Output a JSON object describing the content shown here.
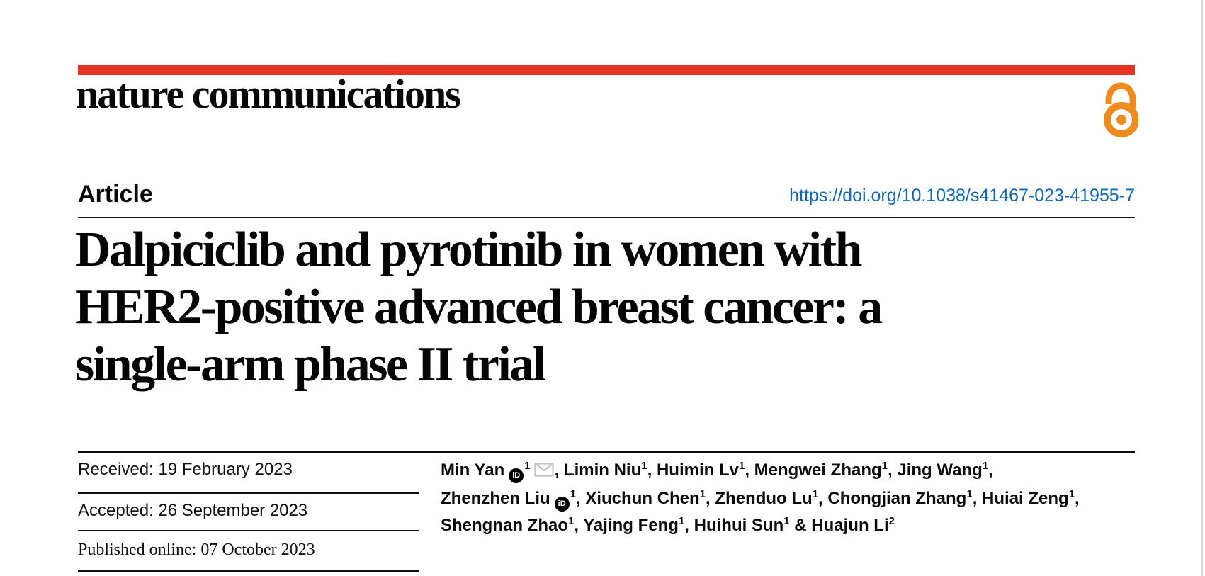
{
  "colors": {
    "brand_red": "#e63323",
    "open_access_orange": "#ef8b1e",
    "link_blue": "#1368b2",
    "divider_black": "#0c0c0c",
    "envelope_gray": "#c4c4c4",
    "page_edge_gray": "#d9d9d9"
  },
  "icons": {
    "open_access": "open-access-padlock-icon",
    "orcid": "orcid-id-icon",
    "email": "envelope-icon"
  },
  "masthead": {
    "journal_name": "nature communications"
  },
  "article_header": {
    "type_label": "Article",
    "doi": "https://doi.org/10.1038/s41467-023-41955-7"
  },
  "title": {
    "full": "Dalpiciclib and pyrotinib in women with HER2-positive advanced breast cancer: a single-arm phase II trial",
    "lines": [
      "Dalpiciclib and pyrotinib in women with",
      "HER2-positive advanced breast cancer: a",
      "single-arm phase II trial"
    ]
  },
  "history": {
    "rows": [
      {
        "label": "Received:",
        "date": "19 February 2023"
      },
      {
        "label": "Accepted:",
        "date": "26 September 2023"
      },
      {
        "label": "Published online:",
        "date": "07 October 2023"
      }
    ]
  },
  "authors": {
    "orcid_badge_text": "iD",
    "list": [
      {
        "name": "Min Yan",
        "sup": "1",
        "orcid": true,
        "email": true
      },
      {
        "name": "Limin Niu",
        "sup": "1"
      },
      {
        "name": "Huimin Lv",
        "sup": "1"
      },
      {
        "name": "Mengwei Zhang",
        "sup": "1"
      },
      {
        "name": "Jing Wang",
        "sup": "1",
        "break_after": true
      },
      {
        "name": "Zhenzhen Liu",
        "sup": "1",
        "orcid": true
      },
      {
        "name": "Xiuchun Chen",
        "sup": "1"
      },
      {
        "name": "Zhenduo Lu",
        "sup": "1"
      },
      {
        "name": "Chongjian Zhang",
        "sup": "1"
      },
      {
        "name": "Huiai Zeng",
        "sup": "1",
        "break_after": true
      },
      {
        "name": "Shengnan Zhao",
        "sup": "1"
      },
      {
        "name": "Yajing Feng",
        "sup": "1"
      },
      {
        "name": "Huihui Sun",
        "sup": "1"
      },
      {
        "name": "Huajun Li",
        "sup": "2"
      }
    ]
  }
}
